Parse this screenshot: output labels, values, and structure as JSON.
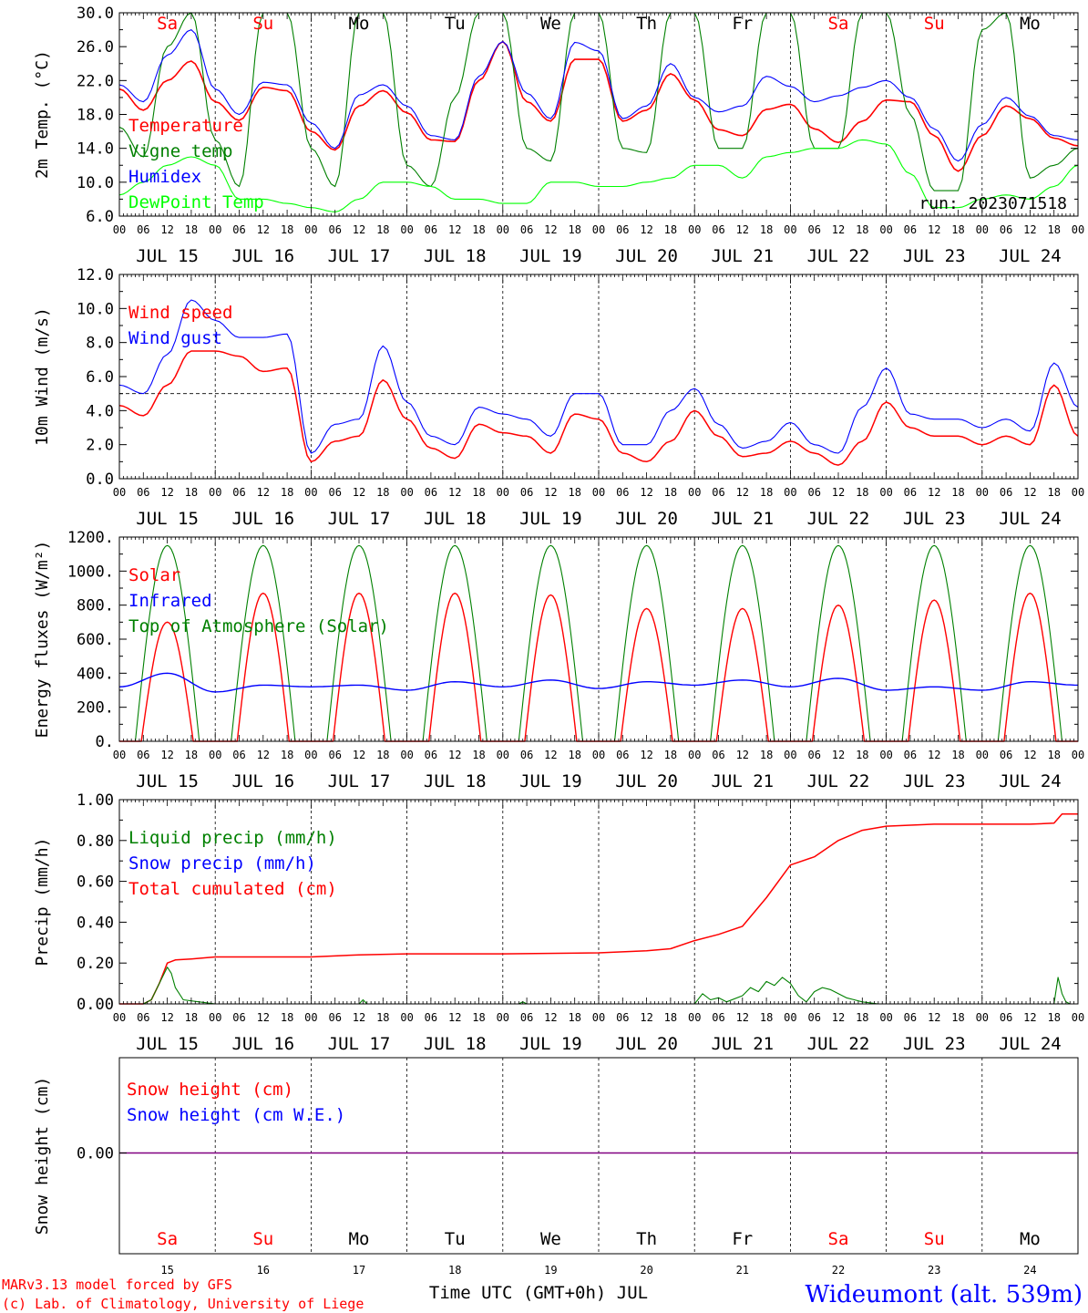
{
  "colors": {
    "red": "#ff0000",
    "darkgreen": "#008000",
    "lightgreen": "#00ff00",
    "blue": "#0000ff",
    "black": "#000000",
    "purple": "#800080"
  },
  "x_axis": {
    "hour_labels": [
      "00",
      "06",
      "12",
      "18"
    ],
    "end_label": "00",
    "date_labels": [
      "JUL 15",
      "JUL 16",
      "JUL 17",
      "JUL 18",
      "JUL 19",
      "JUL 20",
      "JUL 21",
      "JUL 22",
      "JUL 23",
      "JUL 24"
    ],
    "weekday_labels": [
      "Sa",
      "Su",
      "Mo",
      "Tu",
      "We",
      "Th",
      "Fr",
      "Sa",
      "Su",
      "Mo"
    ],
    "weekday_colors": [
      "red",
      "red",
      "black",
      "black",
      "black",
      "black",
      "black",
      "red",
      "red",
      "black"
    ],
    "day_numbers": [
      "15",
      "16",
      "17",
      "18",
      "19",
      "20",
      "21",
      "22",
      "23",
      "24"
    ],
    "title": "Time UTC (GMT+0h) JUL"
  },
  "footer": {
    "model_line": "MARv3.13 model forced by GFS",
    "copyright_line": "(c) Lab. of Climatology, University of Liege",
    "station": "Wideumont (alt. 539m)"
  },
  "chart_data": [
    {
      "id": "temp",
      "type": "line",
      "ylabel": "2m Temp. (°C)",
      "ylim": [
        6,
        30
      ],
      "yticks": [
        "6.0",
        "10.0",
        "14.0",
        "18.0",
        "22.0",
        "26.0",
        "30.0"
      ],
      "ytick_values": [
        6,
        10,
        14,
        18,
        22,
        26,
        30
      ],
      "annotation": "run: 2023071518",
      "legend": [
        {
          "label": "Temperature",
          "color": "red"
        },
        {
          "label": "Vigne temp",
          "color": "darkgreen"
        },
        {
          "label": "Humidex",
          "color": "blue"
        },
        {
          "label": "DewPoint Temp",
          "color": "lightgreen"
        }
      ],
      "x_hours": [
        0,
        6,
        12,
        18,
        24,
        30,
        36,
        42,
        48,
        54,
        60,
        66,
        72,
        78,
        84,
        90,
        96,
        102,
        108,
        114,
        120,
        126,
        132,
        138,
        144,
        150,
        156,
        162,
        168,
        174,
        180,
        186,
        192,
        198,
        204,
        210,
        216,
        222,
        228,
        234,
        240
      ],
      "series": [
        {
          "name": "Temperature",
          "color": "red",
          "values": [
            21,
            18.5,
            22,
            24.3,
            19.5,
            17.3,
            21.2,
            20.8,
            16,
            13.8,
            19,
            20.8,
            18.2,
            15,
            14.8,
            22,
            26.6,
            19.5,
            17.2,
            24.5,
            24.5,
            17.2,
            18.5,
            22.8,
            19.7,
            16.2,
            15.5,
            18.6,
            19.2,
            16.3,
            14.7,
            17.2,
            19.7,
            19.5,
            15.5,
            11.3,
            15.5,
            19,
            17.5,
            15.2,
            14.3
          ]
        },
        {
          "name": "Vigne temp",
          "color": "darkgreen",
          "values": [
            16.5,
            13,
            26,
            30,
            15,
            9.5,
            30,
            30,
            14,
            9.5,
            30,
            30,
            12,
            9.5,
            20,
            30,
            30,
            14,
            12.5,
            30,
            30,
            14,
            13.5,
            30,
            30,
            14,
            14,
            30,
            30,
            14,
            14,
            30,
            30,
            18,
            9,
            9,
            28,
            30,
            10.5,
            12,
            14
          ]
        },
        {
          "name": "Humidex",
          "color": "blue",
          "values": [
            21.5,
            19.5,
            25,
            28,
            21,
            18,
            21.8,
            21.5,
            17,
            14,
            20.3,
            21.5,
            19,
            15.5,
            15,
            22.5,
            26.6,
            20.5,
            17.5,
            26.5,
            25.5,
            17.5,
            19,
            24,
            20,
            18.3,
            19,
            22.5,
            21.3,
            19.5,
            20.2,
            21.2,
            22,
            20,
            16.3,
            12.5,
            16.8,
            20,
            17.8,
            15.5,
            15
          ]
        },
        {
          "name": "DewPoint Temp",
          "color": "lightgreen",
          "values": [
            8.5,
            10,
            12,
            13,
            12,
            8,
            8,
            7.5,
            7,
            6.5,
            8,
            10,
            10,
            9.5,
            8,
            8,
            7.5,
            7.5,
            10,
            10,
            9.5,
            9.5,
            10,
            10.5,
            12,
            12,
            10.5,
            13,
            13.5,
            14,
            14,
            15,
            14.5,
            11,
            7,
            7,
            8,
            8.5,
            8,
            9.5,
            12
          ]
        }
      ]
    },
    {
      "id": "wind",
      "type": "line",
      "ylabel": "10m Wind (m/s)",
      "ylim": [
        0,
        12
      ],
      "yticks": [
        "0.0",
        "2.0",
        "4.0",
        "6.0",
        "8.0",
        "10.0",
        "12.0"
      ],
      "ytick_values": [
        0,
        2,
        4,
        6,
        8,
        10,
        12
      ],
      "reference_line": 5,
      "legend": [
        {
          "label": "Wind speed",
          "color": "red"
        },
        {
          "label": "Wind gust",
          "color": "blue"
        }
      ],
      "x_hours": [
        0,
        6,
        12,
        18,
        24,
        30,
        36,
        42,
        48,
        54,
        60,
        66,
        72,
        78,
        84,
        90,
        96,
        102,
        108,
        114,
        120,
        126,
        132,
        138,
        144,
        150,
        156,
        162,
        168,
        174,
        180,
        186,
        192,
        198,
        204,
        210,
        216,
        222,
        228,
        234,
        240
      ],
      "series": [
        {
          "name": "Wind speed",
          "color": "red",
          "values": [
            4.3,
            3.7,
            5.5,
            7.5,
            7.5,
            7.2,
            6.3,
            6.5,
            1.0,
            2.2,
            2.5,
            5.8,
            3.5,
            1.8,
            1.2,
            3.2,
            2.7,
            2.5,
            1.5,
            3.8,
            3.5,
            1.5,
            1.0,
            2.2,
            4.0,
            2.5,
            1.3,
            1.5,
            2.2,
            1.5,
            0.8,
            2.2,
            4.5,
            3.0,
            2.5,
            2.5,
            2.0,
            2.5,
            2.0,
            5.5,
            2.5
          ]
        },
        {
          "name": "Wind gust",
          "color": "blue",
          "values": [
            5.5,
            5.0,
            7.3,
            10.5,
            9.3,
            8.3,
            8.3,
            8.5,
            1.5,
            3.2,
            3.5,
            7.8,
            4.5,
            2.5,
            2.0,
            4.2,
            3.8,
            3.5,
            2.5,
            5.0,
            5.0,
            2.0,
            2.0,
            4.0,
            5.3,
            3.2,
            1.8,
            2.2,
            3.3,
            2.0,
            1.5,
            4.2,
            6.5,
            3.8,
            3.5,
            3.5,
            3.0,
            3.5,
            2.8,
            6.8,
            4.2
          ]
        }
      ]
    },
    {
      "id": "energy",
      "type": "line",
      "ylabel": "Energy fluxes (W/m²)",
      "ylim": [
        0,
        1200
      ],
      "yticks": [
        "0.",
        "200.",
        "400.",
        "600.",
        "800.",
        "1000.",
        "1200."
      ],
      "ytick_values": [
        0,
        200,
        400,
        600,
        800,
        1000,
        1200
      ],
      "legend": [
        {
          "label": "Solar",
          "color": "red"
        },
        {
          "label": "Infrared",
          "color": "blue"
        },
        {
          "label": "Top of Atmosphere (Solar)",
          "color": "darkgreen"
        }
      ],
      "diurnal": {
        "sunrise_hour": 4,
        "sunset_hour": 20,
        "toa_peak": 1150,
        "solar_peaks": [
          700,
          870,
          870,
          870,
          860,
          780,
          780,
          800,
          830,
          870
        ],
        "infrared_x_hours": [
          0,
          12,
          24,
          36,
          48,
          60,
          72,
          84,
          96,
          108,
          120,
          132,
          144,
          156,
          168,
          180,
          192,
          204,
          216,
          228,
          240
        ],
        "infrared_values": [
          320,
          400,
          290,
          330,
          320,
          330,
          300,
          350,
          320,
          360,
          310,
          350,
          330,
          360,
          320,
          370,
          300,
          320,
          300,
          350,
          330
        ]
      }
    },
    {
      "id": "precip",
      "type": "line",
      "ylabel": "Precip (mm/h)",
      "ylim": [
        0,
        1
      ],
      "yticks": [
        "0.00",
        "0.20",
        "0.40",
        "0.60",
        "0.80",
        "1.00"
      ],
      "ytick_values": [
        0,
        0.2,
        0.4,
        0.6,
        0.8,
        1.0
      ],
      "legend": [
        {
          "label": "Liquid precip (mm/h)",
          "color": "darkgreen"
        },
        {
          "label": "Snow precip (mm/h)",
          "color": "blue"
        },
        {
          "label": "Total cumulated (cm)",
          "color": "red"
        }
      ],
      "series": [
        {
          "name": "Total cumulated (cm)",
          "color": "red",
          "x_hours": [
            0,
            6,
            8,
            10,
            12,
            14,
            18,
            24,
            30,
            48,
            60,
            72,
            96,
            120,
            132,
            138,
            144,
            150,
            156,
            162,
            168,
            174,
            180,
            186,
            192,
            198,
            204,
            216,
            228,
            234,
            236,
            240
          ],
          "values": [
            0,
            0,
            0.02,
            0.1,
            0.2,
            0.215,
            0.22,
            0.23,
            0.23,
            0.23,
            0.24,
            0.245,
            0.245,
            0.25,
            0.26,
            0.27,
            0.31,
            0.34,
            0.38,
            0.52,
            0.68,
            0.72,
            0.8,
            0.85,
            0.87,
            0.875,
            0.88,
            0.88,
            0.88,
            0.885,
            0.93,
            0.93
          ]
        },
        {
          "name": "Liquid precip (mm/h)",
          "color": "darkgreen",
          "x_hours": [
            0,
            6,
            8,
            10,
            12,
            13,
            14,
            16,
            20,
            24,
            60,
            61,
            62,
            100,
            101,
            102,
            144,
            146,
            148,
            150,
            152,
            156,
            158,
            160,
            162,
            164,
            166,
            168,
            170,
            172,
            174,
            176,
            178,
            180,
            182,
            184,
            186,
            190,
            234,
            235,
            236,
            237,
            238,
            240
          ],
          "values": [
            0,
            0,
            0.02,
            0.1,
            0.18,
            0.15,
            0.08,
            0.02,
            0.01,
            0,
            0,
            0.02,
            0,
            0,
            0.01,
            0,
            0,
            0.05,
            0.02,
            0.03,
            0.01,
            0.04,
            0.08,
            0.06,
            0.11,
            0.09,
            0.13,
            0.1,
            0.04,
            0.01,
            0.06,
            0.08,
            0.07,
            0.05,
            0.03,
            0.02,
            0.01,
            0,
            0,
            0.13,
            0.05,
            0.01,
            0,
            0
          ]
        }
      ]
    },
    {
      "id": "snow",
      "type": "line",
      "ylabel": "Snow height (cm)",
      "ytick_label": "0.00",
      "legend": [
        {
          "label": "Snow height (cm)",
          "color": "red"
        },
        {
          "label": "Snow height (cm W.E.)",
          "color": "blue"
        }
      ],
      "series": [
        {
          "name": "Snow height (cm)",
          "color": "purple",
          "x_hours": [
            0,
            240
          ],
          "values": [
            0,
            0
          ]
        }
      ]
    }
  ]
}
